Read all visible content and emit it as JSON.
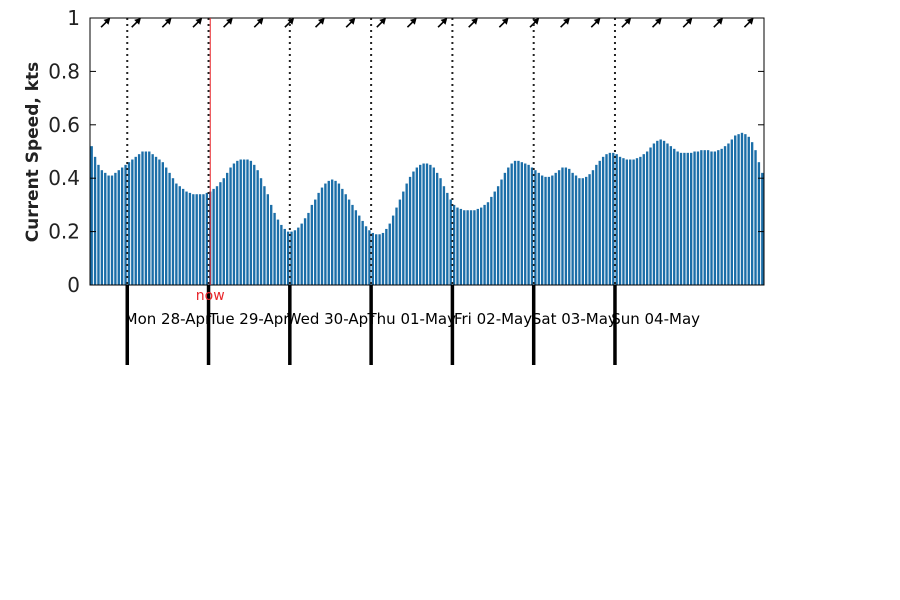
{
  "chart_data": {
    "type": "bar",
    "title": "",
    "xlabel": "",
    "ylabel": "Current Speed, kts",
    "ylim": [
      0,
      1
    ],
    "yticks": [
      0,
      0.2,
      0.4,
      0.6,
      0.8,
      1
    ],
    "ytick_labels": [
      "0",
      "0.2",
      "0.4",
      "0.6",
      "0.8",
      "1"
    ],
    "grid": false,
    "legend": "none",
    "bar_color": "#1b6ea8",
    "now_color": "#e8262b",
    "now_label": "now",
    "now_index": 35,
    "samples_per_day": 24,
    "first_midnight_index": 11,
    "day_labels": [
      "Mon 28-Apr",
      "Tue 29-Apr",
      "Wed 30-Apr",
      "Thu 01-May",
      "Fri 02-May",
      "Sat 03-May",
      "Sun 04-May"
    ],
    "direction_arrow_count": 22,
    "values": [
      0.52,
      0.48,
      0.45,
      0.43,
      0.42,
      0.41,
      0.41,
      0.42,
      0.43,
      0.44,
      0.45,
      0.46,
      0.47,
      0.48,
      0.49,
      0.5,
      0.5,
      0.5,
      0.49,
      0.48,
      0.47,
      0.46,
      0.44,
      0.42,
      0.4,
      0.38,
      0.37,
      0.36,
      0.35,
      0.345,
      0.34,
      0.34,
      0.34,
      0.34,
      0.345,
      0.35,
      0.36,
      0.37,
      0.385,
      0.4,
      0.42,
      0.44,
      0.455,
      0.465,
      0.47,
      0.47,
      0.47,
      0.465,
      0.45,
      0.43,
      0.4,
      0.37,
      0.34,
      0.3,
      0.27,
      0.245,
      0.225,
      0.21,
      0.2,
      0.2,
      0.205,
      0.215,
      0.23,
      0.25,
      0.27,
      0.3,
      0.32,
      0.345,
      0.365,
      0.38,
      0.39,
      0.395,
      0.39,
      0.38,
      0.36,
      0.34,
      0.32,
      0.3,
      0.28,
      0.26,
      0.24,
      0.22,
      0.205,
      0.195,
      0.19,
      0.19,
      0.195,
      0.21,
      0.23,
      0.26,
      0.29,
      0.32,
      0.35,
      0.38,
      0.405,
      0.425,
      0.44,
      0.45,
      0.455,
      0.455,
      0.45,
      0.44,
      0.42,
      0.4,
      0.37,
      0.345,
      0.32,
      0.3,
      0.29,
      0.285,
      0.28,
      0.28,
      0.28,
      0.28,
      0.285,
      0.29,
      0.3,
      0.31,
      0.33,
      0.35,
      0.37,
      0.395,
      0.42,
      0.44,
      0.455,
      0.465,
      0.465,
      0.46,
      0.455,
      0.45,
      0.44,
      0.43,
      0.42,
      0.41,
      0.405,
      0.405,
      0.41,
      0.42,
      0.43,
      0.44,
      0.44,
      0.435,
      0.42,
      0.41,
      0.4,
      0.4,
      0.405,
      0.415,
      0.43,
      0.45,
      0.465,
      0.48,
      0.49,
      0.495,
      0.495,
      0.49,
      0.48,
      0.475,
      0.47,
      0.47,
      0.47,
      0.475,
      0.48,
      0.49,
      0.5,
      0.515,
      0.53,
      0.54,
      0.545,
      0.54,
      0.53,
      0.52,
      0.51,
      0.5,
      0.495,
      0.495,
      0.495,
      0.495,
      0.5,
      0.5,
      0.505,
      0.505,
      0.505,
      0.5,
      0.5,
      0.505,
      0.51,
      0.52,
      0.53,
      0.545,
      0.56,
      0.565,
      0.57,
      0.565,
      0.555,
      0.535,
      0.505,
      0.46,
      0.42
    ]
  }
}
